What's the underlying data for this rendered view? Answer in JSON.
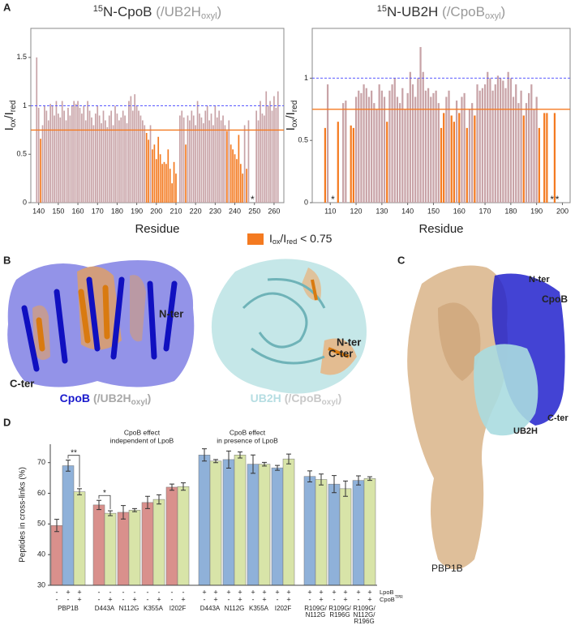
{
  "panel_labels": [
    "A",
    "B",
    "C",
    "D"
  ],
  "legend": {
    "color": "#f47a20",
    "label": [
      "I",
      "ox",
      "/I",
      "red",
      " < 0.75"
    ]
  },
  "chart_data": [
    {
      "type": "residue_bar",
      "title": [
        "15",
        "N-CpoB",
        " (/UB2H",
        "oxyl",
        ")"
      ],
      "xlabel": "Residue",
      "ylabel": [
        "I",
        "ox",
        "/I",
        "red"
      ],
      "color": "#c8a3a7",
      "highlight_color": "#f47a20",
      "threshold": 0.75,
      "hlines": [
        {
          "value": 1,
          "color": "#5a5aff",
          "dashed": true
        },
        {
          "value": 0.75,
          "color": "#f47a20",
          "dashed": false
        }
      ],
      "missing": [
        249
      ],
      "missing_label": "*",
      "missing_color": "#e0507a",
      "xlim": [
        136,
        265
      ],
      "xticks": [
        140,
        150,
        160,
        170,
        180,
        190,
        200,
        210,
        220,
        230,
        240,
        250,
        260
      ],
      "ylim": [
        0,
        1.8
      ],
      "yticks": [
        0,
        0.5,
        1,
        1.5
      ],
      "x": [
        139,
        140,
        141,
        142,
        143,
        144,
        145,
        146,
        147,
        148,
        149,
        150,
        151,
        152,
        153,
        154,
        155,
        156,
        157,
        158,
        159,
        160,
        161,
        162,
        163,
        164,
        165,
        166,
        167,
        168,
        169,
        170,
        171,
        172,
        173,
        174,
        175,
        176,
        177,
        178,
        179,
        180,
        181,
        182,
        183,
        184,
        185,
        186,
        187,
        188,
        189,
        190,
        191,
        192,
        193,
        194,
        195,
        196,
        197,
        198,
        199,
        200,
        201,
        202,
        203,
        204,
        205,
        206,
        207,
        208,
        209,
        210,
        212,
        213,
        214,
        215,
        216,
        217,
        218,
        219,
        220,
        221,
        222,
        223,
        224,
        225,
        226,
        227,
        228,
        229,
        230,
        231,
        232,
        233,
        234,
        235,
        236,
        237,
        238,
        239,
        240,
        241,
        242,
        243,
        244,
        245,
        246,
        247,
        251,
        252,
        253,
        254,
        255,
        256,
        257,
        258,
        259,
        260,
        261,
        262
      ],
      "values": [
        1.5,
        0.98,
        0.66,
        0.8,
        1.0,
        0.95,
        0.85,
        1.02,
        1.0,
        0.9,
        1.05,
        0.92,
        0.88,
        1.05,
        0.95,
        0.85,
        0.98,
        0.9,
        1.0,
        1.05,
        1.02,
        1.05,
        0.98,
        0.92,
        1.0,
        0.85,
        1.05,
        0.95,
        0.88,
        0.8,
        0.92,
        1.0,
        0.9,
        0.82,
        0.95,
        0.85,
        0.78,
        0.9,
        0.95,
        0.8,
        1.0,
        0.92,
        0.85,
        0.88,
        0.95,
        0.9,
        0.82,
        1.05,
        1.1,
        0.95,
        1.12,
        1.0,
        0.95,
        0.9,
        0.85,
        0.8,
        0.72,
        0.65,
        0.8,
        0.55,
        0.6,
        0.45,
        0.68,
        0.5,
        0.4,
        0.42,
        0.4,
        0.55,
        0.35,
        0.2,
        0.42,
        0.3,
        0.9,
        0.95,
        0.88,
        0.6,
        0.9,
        0.85,
        0.95,
        0.9,
        0.8,
        1.05,
        0.92,
        0.88,
        0.82,
        0.95,
        1.0,
        0.85,
        0.92,
        0.8,
        1.0,
        0.88,
        0.95,
        0.85,
        0.9,
        0.8,
        0.74,
        0.85,
        0.6,
        0.55,
        0.5,
        0.45,
        0.7,
        0.4,
        0.3,
        0.8,
        0.35,
        0.85,
        0.95,
        0.85,
        1.05,
        0.92,
        0.9,
        1.15,
        1.0,
        1.05,
        0.95,
        1.1,
        0.98,
        1.15
      ]
    },
    {
      "type": "residue_bar",
      "title": [
        "15",
        "N-UB2H",
        " (/CpoB",
        "oxyl",
        ")"
      ],
      "xlabel": "Residue",
      "ylabel": [
        "I",
        "ox",
        "/I",
        "red"
      ],
      "color": "#c8a3a7",
      "highlight_color": "#f47a20",
      "threshold": 0.75,
      "hlines": [
        {
          "value": 1,
          "color": "#5a5aff",
          "dashed": true
        },
        {
          "value": 0.75,
          "color": "#f47a20",
          "dashed": false
        }
      ],
      "missing": [
        111,
        196,
        198
      ],
      "missing_label": "*",
      "missing_color": "#e0507a",
      "xlim": [
        103,
        203
      ],
      "xticks": [
        110,
        120,
        130,
        140,
        150,
        160,
        170,
        180,
        190,
        200
      ],
      "ylim": [
        0,
        1.4
      ],
      "yticks": [
        0,
        0.5,
        1
      ],
      "x": [
        108,
        109,
        113,
        115,
        116,
        118,
        119,
        120,
        121,
        122,
        123,
        124,
        125,
        126,
        127,
        128,
        129,
        130,
        131,
        132,
        133,
        134,
        135,
        136,
        137,
        138,
        139,
        140,
        141,
        142,
        143,
        144,
        145,
        146,
        147,
        148,
        149,
        150,
        151,
        152,
        153,
        154,
        155,
        156,
        157,
        158,
        159,
        160,
        161,
        162,
        163,
        164,
        165,
        166,
        167,
        168,
        169,
        170,
        171,
        172,
        173,
        174,
        175,
        176,
        177,
        178,
        179,
        180,
        181,
        182,
        183,
        184,
        185,
        186,
        187,
        188,
        189,
        190,
        191,
        193,
        194,
        197
      ],
      "values": [
        0.6,
        0.95,
        0.65,
        0.8,
        0.82,
        0.62,
        0.6,
        0.85,
        0.9,
        0.88,
        0.95,
        0.92,
        0.85,
        0.9,
        0.8,
        0.75,
        0.95,
        0.9,
        0.85,
        0.65,
        0.9,
        0.95,
        1.0,
        0.85,
        0.8,
        0.92,
        0.75,
        0.88,
        1.05,
        0.95,
        0.85,
        1.0,
        1.25,
        1.05,
        0.9,
        0.92,
        0.85,
        0.88,
        0.9,
        0.8,
        0.6,
        0.72,
        0.85,
        0.9,
        0.7,
        0.65,
        0.82,
        0.72,
        0.85,
        0.88,
        0.6,
        0.75,
        0.8,
        0.7,
        0.95,
        0.9,
        0.92,
        0.95,
        1.05,
        1.0,
        0.9,
        0.95,
        1.02,
        1.0,
        0.98,
        0.92,
        1.05,
        1.0,
        0.85,
        0.95,
        0.8,
        0.9,
        0.7,
        0.8,
        0.88,
        0.95,
        0.75,
        0.85,
        0.6,
        0.72,
        0.72,
        0.72
      ]
    },
    {
      "type": "grouped_bar",
      "ylabel": "Peptides in cross-links (%)",
      "ylim": [
        30,
        76
      ],
      "yticks": [
        30,
        40,
        50,
        60,
        70
      ],
      "row_labels": [
        [
          "LpoB"
        ],
        [
          "CpoB",
          "TPR"
        ]
      ],
      "sections": [
        {
          "groups": [
            {
              "label": [
                "PBP1B"
              ],
              "significance": "**",
              "bars": [
                {
                  "color": "#d9908c",
                  "value": 49.5,
                  "error": 2,
                  "rows": [
                    "-",
                    "-"
                  ]
                },
                {
                  "color": "#8fb1d9",
                  "value": 69,
                  "error": 1.8,
                  "rows": [
                    "+",
                    "-"
                  ]
                },
                {
                  "color": "#d8e4a8",
                  "value": 60.5,
                  "error": 1,
                  "rows": [
                    "+",
                    "+"
                  ]
                }
              ]
            }
          ]
        },
        {
          "annotation": [
            "CpoB effect",
            "independent of LpoB"
          ],
          "groups": [
            {
              "label": [
                "D443A"
              ],
              "significance": "*",
              "bars": [
                {
                  "color": "#d9908c",
                  "value": 56.2,
                  "error": 1.5,
                  "rows": [
                    "-",
                    "-"
                  ]
                },
                {
                  "color": "#d8e4a8",
                  "value": 53.5,
                  "error": 0.8,
                  "rows": [
                    "-",
                    "+"
                  ]
                }
              ]
            },
            {
              "label": [
                "N112G"
              ],
              "bars": [
                {
                  "color": "#d9908c",
                  "value": 53.8,
                  "error": 2.2,
                  "rows": [
                    "-",
                    "-"
                  ]
                },
                {
                  "color": "#d8e4a8",
                  "value": 54.5,
                  "error": 0.5,
                  "rows": [
                    "-",
                    "+"
                  ]
                }
              ]
            },
            {
              "label": [
                "K355A"
              ],
              "bars": [
                {
                  "color": "#d9908c",
                  "value": 57,
                  "error": 2,
                  "rows": [
                    "-",
                    "-"
                  ]
                },
                {
                  "color": "#d8e4a8",
                  "value": 58,
                  "error": 1.5,
                  "rows": [
                    "-",
                    "+"
                  ]
                }
              ]
            },
            {
              "label": [
                "I202F"
              ],
              "bars": [
                {
                  "color": "#d9908c",
                  "value": 62,
                  "error": 1,
                  "rows": [
                    "-",
                    "-"
                  ]
                },
                {
                  "color": "#d8e4a8",
                  "value": 62.2,
                  "error": 1.2,
                  "rows": [
                    "-",
                    "+"
                  ]
                }
              ]
            }
          ]
        },
        {
          "annotation": [
            "CpoB effect",
            "in presence of LpoB"
          ],
          "groups": [
            {
              "label": [
                "D443A"
              ],
              "bars": [
                {
                  "color": "#8fb1d9",
                  "value": 72.5,
                  "error": 2,
                  "rows": [
                    "+",
                    "-"
                  ]
                },
                {
                  "color": "#d8e4a8",
                  "value": 70.5,
                  "error": 0.5,
                  "rows": [
                    "+",
                    "+"
                  ]
                }
              ]
            },
            {
              "label": [
                "N112G"
              ],
              "bars": [
                {
                  "color": "#8fb1d9",
                  "value": 71,
                  "error": 2.8,
                  "rows": [
                    "+",
                    "-"
                  ]
                },
                {
                  "color": "#d8e4a8",
                  "value": 72.5,
                  "error": 1,
                  "rows": [
                    "+",
                    "+"
                  ]
                }
              ]
            },
            {
              "label": [
                "K355A"
              ],
              "bars": [
                {
                  "color": "#8fb1d9",
                  "value": 69.5,
                  "error": 3,
                  "rows": [
                    "+",
                    "-"
                  ]
                },
                {
                  "color": "#d8e4a8",
                  "value": 69.5,
                  "error": 0.6,
                  "rows": [
                    "+",
                    "+"
                  ]
                }
              ]
            },
            {
              "label": [
                "I202F"
              ],
              "bars": [
                {
                  "color": "#8fb1d9",
                  "value": 68.3,
                  "error": 0.8,
                  "rows": [
                    "+",
                    "-"
                  ]
                },
                {
                  "color": "#d8e4a8",
                  "value": 71.2,
                  "error": 1.6,
                  "rows": [
                    "+",
                    "+"
                  ]
                }
              ]
            }
          ]
        },
        {
          "groups": [
            {
              "label": [
                "R109G/",
                "N112G"
              ],
              "bars": [
                {
                  "color": "#8fb1d9",
                  "value": 65.5,
                  "error": 1.8,
                  "rows": [
                    "+",
                    "-"
                  ]
                },
                {
                  "color": "#d8e4a8",
                  "value": 64.5,
                  "error": 1.8,
                  "rows": [
                    "+",
                    "+"
                  ]
                }
              ]
            },
            {
              "label": [
                "R109G/",
                "R196G"
              ],
              "bars": [
                {
                  "color": "#8fb1d9",
                  "value": 63,
                  "error": 2.8,
                  "rows": [
                    "+",
                    "-"
                  ]
                },
                {
                  "color": "#d8e4a8",
                  "value": 61.5,
                  "error": 2.5,
                  "rows": [
                    "+",
                    "+"
                  ]
                }
              ]
            },
            {
              "label": [
                "R109G/",
                "N112G/",
                "R196G"
              ],
              "bars": [
                {
                  "color": "#8fb1d9",
                  "value": 64.2,
                  "error": 1.5,
                  "rows": [
                    "+",
                    "-"
                  ]
                },
                {
                  "color": "#d8e4a8",
                  "value": 64.8,
                  "error": 0.6,
                  "rows": [
                    "+",
                    "+"
                  ]
                }
              ]
            }
          ]
        }
      ]
    }
  ],
  "structures": {
    "cpob": {
      "n_ter": "N-ter",
      "c_ter": "C-ter",
      "name": "CpoB",
      "condition": [
        "(/UB2H",
        "oxyl",
        ")"
      ]
    },
    "ub2h": {
      "n_ter": "N-ter",
      "c_ter": "C-ter",
      "name": "UB2H",
      "condition": [
        "(/CpoB",
        "oxyl",
        ")"
      ]
    },
    "complex": {
      "n_ter": "N-ter",
      "cpob": "CpoB",
      "ub2h": "UB2H",
      "c_ter": "C-ter",
      "pbp1b": "PBP1B"
    }
  }
}
